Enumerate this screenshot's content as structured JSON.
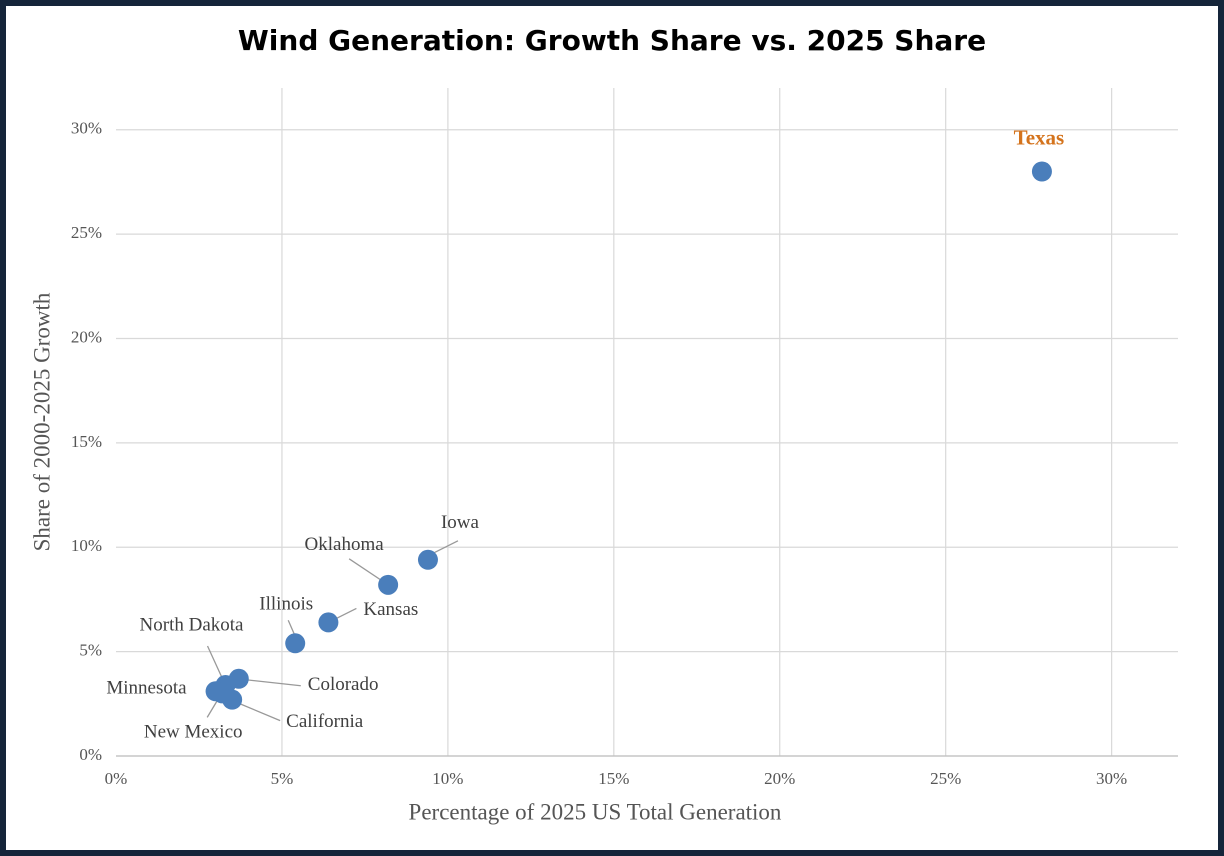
{
  "chart_data": {
    "type": "scatter",
    "title": "Wind Generation: Growth Share vs. 2025 Share",
    "xlabel": "Percentage of 2025 US Total Generation",
    "ylabel": "Share of 2000-2025 Growth",
    "labels": [
      "Texas",
      "Iowa",
      "Oklahoma",
      "Kansas",
      "Illinois",
      "Colorado",
      "North Dakota",
      "Minnesota",
      "New Mexico",
      "California"
    ],
    "x": [
      27.9,
      9.4,
      8.2,
      6.4,
      5.4,
      3.7,
      3.3,
      3.0,
      3.2,
      3.5
    ],
    "y": [
      28.0,
      9.4,
      8.2,
      6.4,
      5.4,
      3.7,
      3.4,
      3.1,
      3.0,
      2.7
    ],
    "label_colors": [
      "#d4731c",
      "#404040",
      "#404040",
      "#404040",
      "#404040",
      "#404040",
      "#404040",
      "#404040",
      "#404040",
      "#404040"
    ],
    "color": "#4a7ebb",
    "xlim": [
      0,
      32
    ],
    "ylim": [
      0,
      32
    ],
    "xticks": [
      {
        "value": 0,
        "label": "0%"
      },
      {
        "value": 5,
        "label": "5%"
      },
      {
        "value": 10,
        "label": "10%"
      },
      {
        "value": 15,
        "label": "15%"
      },
      {
        "value": 20,
        "label": "20%"
      },
      {
        "value": 25,
        "label": "25%"
      },
      {
        "value": 30,
        "label": "30%"
      }
    ],
    "yticks": [
      {
        "value": 0,
        "label": "0%"
      },
      {
        "value": 5,
        "label": "5%"
      },
      {
        "value": 10,
        "label": "10%"
      },
      {
        "value": 15,
        "label": "15%"
      },
      {
        "value": 20,
        "label": "20%"
      },
      {
        "value": 25,
        "label": "25%"
      },
      {
        "value": 30,
        "label": "30%"
      }
    ],
    "grid": true
  }
}
